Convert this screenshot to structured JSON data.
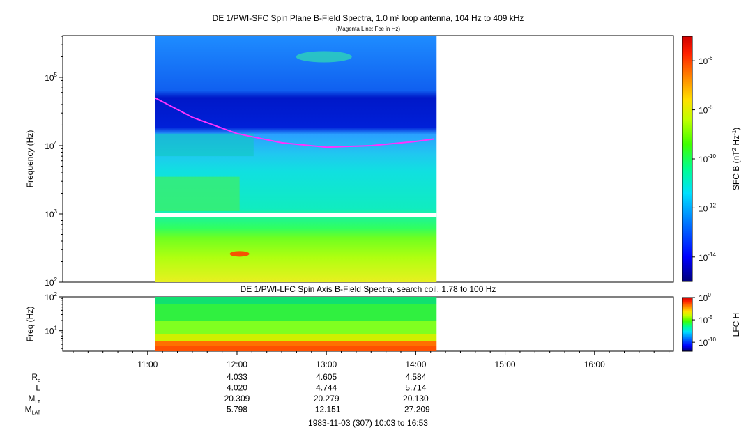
{
  "chart_data": [
    {
      "type": "heatmap",
      "title": "DE 1/PWI-SFC  Spin Plane B-Field Spectra, 1.0 m² loop antenna, 104 Hz to 409 kHz",
      "subtitle": "(Magenta Line: Fce in Hz)",
      "ylabel": "Frequency (Hz)",
      "yscale": "log",
      "ylim": [
        100,
        409000
      ],
      "yticks": [
        {
          "value": 100,
          "base": "10",
          "exp": "2"
        },
        {
          "value": 1000,
          "base": "10",
          "exp": "3"
        },
        {
          "value": 10000,
          "base": "10",
          "exp": "4"
        },
        {
          "value": 100000,
          "base": "10",
          "exp": "5"
        }
      ],
      "xlim": [
        "10:03",
        "16:53"
      ],
      "data_time_range": [
        "11:05",
        "14:14"
      ],
      "gap_band_hz": [
        900,
        1040
      ],
      "colorbar": {
        "label_parts": {
          "main": "SFC B (nT",
          "sup1": "2",
          "mid": " Hz",
          "sup2": "-1",
          "end": ")"
        },
        "scale": "log",
        "range": [
          1e-15,
          1e-05
        ],
        "ticks": [
          {
            "value": 1e-06,
            "base": "10",
            "exp": "-6"
          },
          {
            "value": 1e-08,
            "base": "10",
            "exp": "-8"
          },
          {
            "value": 1e-10,
            "base": "10",
            "exp": "-10"
          },
          {
            "value": 1e-12,
            "base": "10",
            "exp": "-12"
          },
          {
            "value": 1e-14,
            "base": "10",
            "exp": "-14"
          }
        ]
      },
      "fce_line": {
        "name": "Fce",
        "color": "#ff33ff",
        "points": [
          {
            "t": "11:05",
            "hz": 50000
          },
          {
            "t": "11:30",
            "hz": 26000
          },
          {
            "t": "12:00",
            "hz": 15000
          },
          {
            "t": "12:30",
            "hz": 11000
          },
          {
            "t": "13:00",
            "hz": 9500
          },
          {
            "t": "13:30",
            "hz": 10000
          },
          {
            "t": "14:00",
            "hz": 11500
          },
          {
            "t": "14:12",
            "hz": 12500
          }
        ]
      }
    },
    {
      "type": "heatmap",
      "title": "DE 1/PWI-LFC  Spin Axis B-Field Spectra, search coil, 1.78 to 100 Hz",
      "ylabel": "Freq (Hz)",
      "yscale": "log",
      "ylim": [
        2.5,
        100
      ],
      "yticks": [
        {
          "value": 10,
          "base": "10",
          "exp": "1"
        },
        {
          "value": 100,
          "base": "10",
          "exp": "2"
        }
      ],
      "xlim": [
        "10:03",
        "16:53"
      ],
      "data_time_range": [
        "11:05",
        "14:14"
      ],
      "colorbar": {
        "label": "LFC H",
        "scale": "log",
        "range": [
          1e-12,
          1
        ],
        "ticks": [
          {
            "value": 1,
            "base": "10",
            "exp": "0"
          },
          {
            "value": 1e-05,
            "base": "10",
            "exp": "-5"
          },
          {
            "value": 1e-10,
            "base": "10",
            "exp": "-10"
          }
        ]
      },
      "xticks": [
        "11:00",
        "12:00",
        "13:00",
        "14:00",
        "15:00",
        "16:00"
      ]
    }
  ],
  "ephemeris": {
    "rows": [
      {
        "label": "R",
        "sub": "e",
        "values": [
          "4.033",
          "4.605",
          "4.584"
        ]
      },
      {
        "label": "L",
        "sub": "",
        "values": [
          "4.020",
          "4.744",
          "5.714"
        ]
      },
      {
        "label": "M",
        "sub": "LT",
        "values": [
          "20.309",
          "20.279",
          "20.130"
        ]
      },
      {
        "label": "M",
        "sub": "LAT",
        "values": [
          "5.798",
          "-12.151",
          "-27.209"
        ]
      }
    ],
    "times": [
      "12:00",
      "13:00",
      "14:00"
    ]
  },
  "footer": "1983-11-03 (307) 10:03 to 16:53",
  "colors": {
    "magenta_line": "#ff33ff",
    "colormap": [
      "#00007a",
      "#0000ff",
      "#0080ff",
      "#00e0ff",
      "#00ff80",
      "#40ff00",
      "#c0ff00",
      "#ffe000",
      "#ff8000",
      "#ff2000",
      "#c00000"
    ]
  }
}
